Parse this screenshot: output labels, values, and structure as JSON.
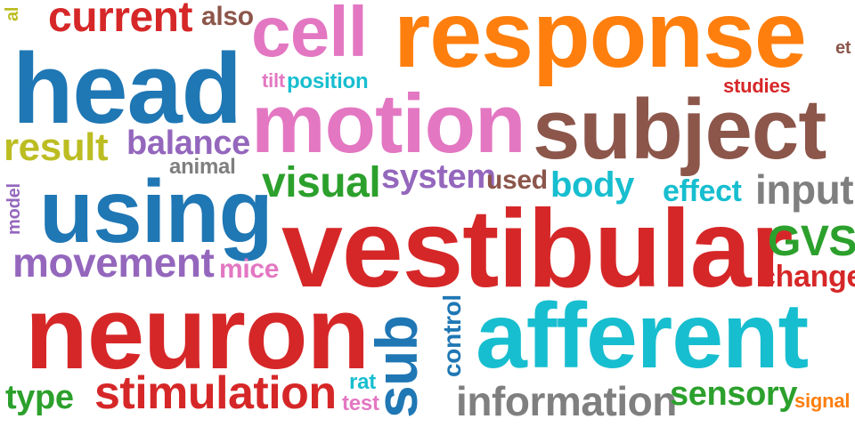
{
  "words": [
    {
      "id": "response",
      "text": "response",
      "color": "#ff7f0e"
    },
    {
      "id": "vestibular",
      "text": "vestibular",
      "color": "#d62728"
    },
    {
      "id": "motion",
      "text": "motion",
      "color": "#e377c2"
    },
    {
      "id": "subject",
      "text": "subject",
      "color": "#8c564b"
    },
    {
      "id": "head",
      "text": "head",
      "color": "#1f77b4"
    },
    {
      "id": "neuron",
      "text": "neuron",
      "color": "#d62728"
    },
    {
      "id": "afferent",
      "text": "afferent",
      "color": "#17becf"
    },
    {
      "id": "using",
      "text": "using",
      "color": "#1f77b4"
    },
    {
      "id": "cell",
      "text": "cell",
      "color": "#e377c2"
    },
    {
      "id": "current",
      "text": "current",
      "color": "#d62728"
    },
    {
      "id": "stimulation",
      "text": "stimulation",
      "color": "#d62728"
    },
    {
      "id": "sub",
      "text": "sub",
      "color": "#1f77b4"
    },
    {
      "id": "movement",
      "text": "movement",
      "color": "#9467bd"
    },
    {
      "id": "information",
      "text": "information",
      "color": "#7f7f7f"
    },
    {
      "id": "visual",
      "text": "visual",
      "color": "#2ca02c"
    },
    {
      "id": "input",
      "text": "input",
      "color": "#7f7f7f"
    },
    {
      "id": "gvs",
      "text": "GVS",
      "color": "#2ca02c"
    },
    {
      "id": "sensory",
      "text": "sensory",
      "color": "#2ca02c"
    },
    {
      "id": "result",
      "text": "result",
      "color": "#bcbd22"
    },
    {
      "id": "balance",
      "text": "balance",
      "color": "#9467bd"
    },
    {
      "id": "body",
      "text": "body",
      "color": "#17becf"
    },
    {
      "id": "system",
      "text": "system",
      "color": "#9467bd"
    },
    {
      "id": "change",
      "text": "change",
      "color": "#d62728"
    },
    {
      "id": "type",
      "text": "type",
      "color": "#2ca02c"
    },
    {
      "id": "effect",
      "text": "effect",
      "color": "#17becf"
    },
    {
      "id": "also",
      "text": "also",
      "color": "#8c564b"
    },
    {
      "id": "mice",
      "text": "mice",
      "color": "#e377c2"
    },
    {
      "id": "used",
      "text": "used",
      "color": "#8c564b"
    },
    {
      "id": "position",
      "text": "position",
      "color": "#17becf"
    },
    {
      "id": "control",
      "text": "control",
      "color": "#1f77b4"
    },
    {
      "id": "studies",
      "text": "studies",
      "color": "#d62728"
    },
    {
      "id": "signal",
      "text": "signal",
      "color": "#ff7f0e"
    },
    {
      "id": "animal",
      "text": "animal",
      "color": "#7f7f7f"
    },
    {
      "id": "rat",
      "text": "rat",
      "color": "#17becf"
    },
    {
      "id": "test",
      "text": "test",
      "color": "#e377c2"
    },
    {
      "id": "tilt",
      "text": "tilt",
      "color": "#e377c2"
    },
    {
      "id": "et",
      "text": "et",
      "color": "#8c564b"
    },
    {
      "id": "model",
      "text": "model",
      "color": "#9467bd"
    },
    {
      "id": "al",
      "text": "al",
      "color": "#bcbd22"
    }
  ]
}
